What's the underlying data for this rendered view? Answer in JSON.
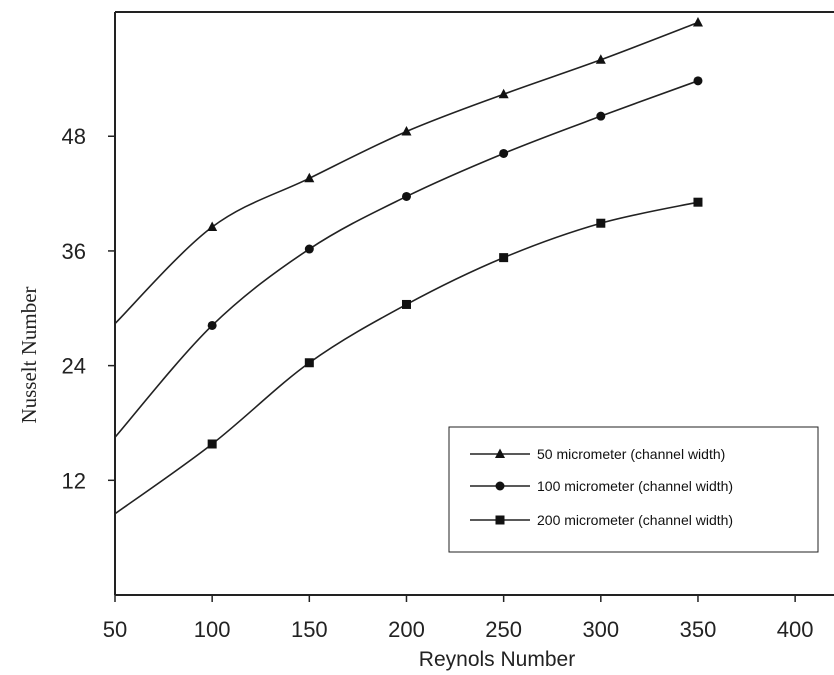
{
  "chart_data": {
    "type": "line",
    "title": "",
    "xlabel": "Reynols Number",
    "ylabel": "Nusselt Number",
    "xlim": [
      50,
      420
    ],
    "ylim": [
      0,
      61
    ],
    "xticks": [
      50,
      100,
      150,
      200,
      250,
      300,
      350,
      400
    ],
    "yticks": [
      12,
      24,
      36,
      48
    ],
    "grid": false,
    "legend_position": "bottom-right",
    "series": [
      {
        "name": "50 micrometer (channel width)",
        "marker": "triangle",
        "x": [
          50,
          100,
          150,
          200,
          250,
          300,
          350
        ],
        "y": [
          28.4,
          38.5,
          43.6,
          48.5,
          52.4,
          56.0,
          59.9
        ]
      },
      {
        "name": "100 micrometer (channel width)",
        "marker": "circle",
        "x": [
          50,
          100,
          150,
          200,
          250,
          300,
          350
        ],
        "y": [
          16.5,
          28.2,
          36.2,
          41.7,
          46.2,
          50.1,
          53.8
        ]
      },
      {
        "name": "200 micrometer (channel width)",
        "marker": "square",
        "x": [
          50,
          100,
          150,
          200,
          250,
          300,
          350
        ],
        "y": [
          8.5,
          15.8,
          24.3,
          30.4,
          35.3,
          38.9,
          41.1
        ]
      }
    ]
  }
}
